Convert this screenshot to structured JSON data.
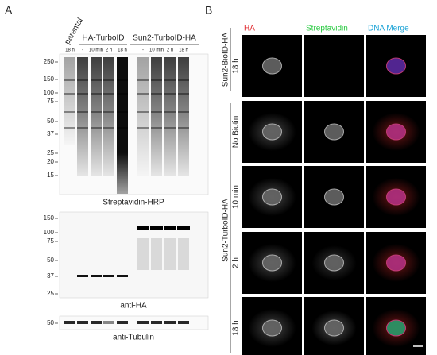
{
  "panel_a": {
    "label": "A",
    "parental": "parental",
    "groups": [
      "HA-TurboID",
      "Sun2-TurboID-HA"
    ],
    "lanes": [
      "18 h",
      "-",
      "10 min",
      "2 h",
      "18 h",
      "-",
      "10 min",
      "2 h",
      "18 h"
    ],
    "blots": [
      {
        "caption": "Streptavidin-HRP",
        "markers": [
          "250",
          "150",
          "100",
          "75",
          "50",
          "37",
          "25",
          "20",
          "15"
        ]
      },
      {
        "caption": "anti-HA",
        "markers": [
          "150",
          "100",
          "75",
          "50",
          "37",
          "25"
        ]
      },
      {
        "caption": "anti-Tubulin",
        "markers": [
          "50"
        ]
      }
    ]
  },
  "panel_b": {
    "label": "B",
    "columns": [
      "HA",
      "Streptavidin",
      "DNA Merge"
    ],
    "group_labels": [
      "Sun2-BioID-HA",
      "Sun2-TurboID-HA"
    ],
    "rows": [
      "18 h",
      "No Biotin",
      "10 min",
      "2 h",
      "18 h"
    ]
  }
}
